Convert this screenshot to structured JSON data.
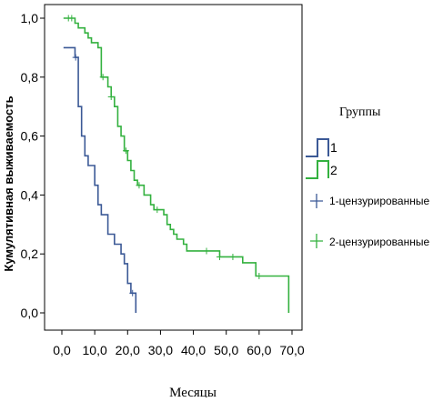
{
  "chart_data": {
    "type": "line",
    "subtype": "kaplan-meier-step",
    "xlabel": "Месяцы",
    "ylabel": "Кумулятивная выживаемость",
    "xlim": [
      0,
      70
    ],
    "ylim": [
      0,
      1
    ],
    "x_ticks": [
      "0,0",
      "10,0",
      "20,0",
      "30,0",
      "40,0",
      "50,0",
      "60,0",
      "70,0"
    ],
    "y_ticks": [
      "0,0",
      "0,2",
      "0,4",
      "0,6",
      "0,8",
      "1,0"
    ],
    "grid": false,
    "legend": {
      "title": "Группы",
      "placement": "right",
      "items": [
        {
          "label": "1",
          "kind": "line",
          "color": "#3b5996"
        },
        {
          "label": "2",
          "kind": "line",
          "color": "#33b13f"
        },
        {
          "label": "1-цензурированные",
          "kind": "censor",
          "color": "#3b5996"
        },
        {
          "label": "2-цензурированные",
          "kind": "censor",
          "color": "#33b13f"
        }
      ]
    },
    "series": [
      {
        "name": "1",
        "color": "#3b5996",
        "steps": [
          [
            0.5,
            0.9
          ],
          [
            4,
            0.867
          ],
          [
            5,
            0.7
          ],
          [
            6,
            0.6
          ],
          [
            7,
            0.533
          ],
          [
            8,
            0.5
          ],
          [
            10,
            0.433
          ],
          [
            11,
            0.367
          ],
          [
            12,
            0.333
          ],
          [
            14,
            0.267
          ],
          [
            16,
            0.233
          ],
          [
            18,
            0.2
          ],
          [
            19,
            0.167
          ],
          [
            20,
            0.1
          ],
          [
            21,
            0.067
          ],
          [
            22.5,
            0.0
          ]
        ],
        "censored": [
          [
            4.2,
            0.867
          ],
          [
            21.5,
            0.067
          ]
        ]
      },
      {
        "name": "2",
        "color": "#33b13f",
        "steps": [
          [
            0.5,
            1.0
          ],
          [
            4,
            0.983
          ],
          [
            5,
            0.967
          ],
          [
            7,
            0.95
          ],
          [
            8,
            0.933
          ],
          [
            9,
            0.917
          ],
          [
            11,
            0.9
          ],
          [
            12,
            0.8
          ],
          [
            14,
            0.767
          ],
          [
            15,
            0.733
          ],
          [
            16,
            0.7
          ],
          [
            17,
            0.633
          ],
          [
            18,
            0.6
          ],
          [
            19,
            0.55
          ],
          [
            20,
            0.517
          ],
          [
            21,
            0.483
          ],
          [
            22,
            0.45
          ],
          [
            23,
            0.433
          ],
          [
            25,
            0.4
          ],
          [
            27,
            0.367
          ],
          [
            28,
            0.35
          ],
          [
            31,
            0.333
          ],
          [
            32,
            0.3
          ],
          [
            33,
            0.283
          ],
          [
            34,
            0.267
          ],
          [
            35,
            0.25
          ],
          [
            37,
            0.233
          ],
          [
            38,
            0.21
          ],
          [
            48,
            0.19
          ],
          [
            55,
            0.17
          ],
          [
            59,
            0.125
          ],
          [
            69,
            0.0
          ]
        ],
        "censored": [
          [
            2,
            1.0
          ],
          [
            3,
            1.0
          ],
          [
            12.5,
            0.8
          ],
          [
            15,
            0.733
          ],
          [
            19.5,
            0.55
          ],
          [
            23.5,
            0.433
          ],
          [
            29,
            0.35
          ],
          [
            44,
            0.21
          ],
          [
            48,
            0.19
          ],
          [
            52,
            0.19
          ],
          [
            60,
            0.125
          ]
        ]
      }
    ]
  }
}
